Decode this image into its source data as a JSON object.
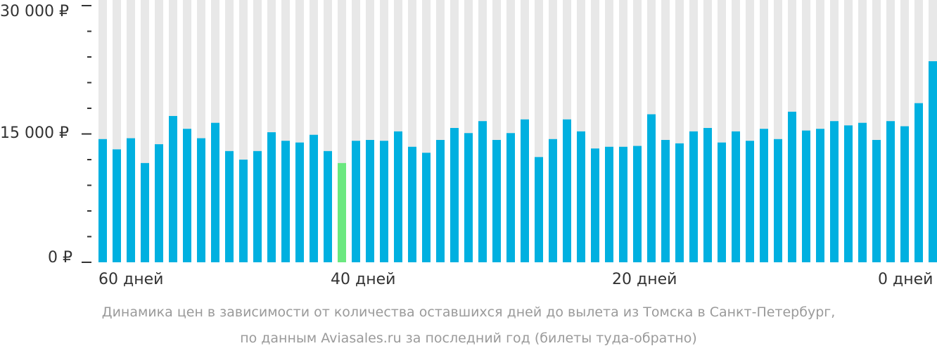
{
  "chart_data": {
    "type": "bar",
    "x_tick_labels": [
      "60 дней",
      "40 дней",
      "20 дней",
      "0 дней"
    ],
    "y_tick_labels": [
      "30 000 ₽",
      "15 000 ₽",
      "0 ₽"
    ],
    "ylim": [
      0,
      30000
    ],
    "values": [
      14400,
      13200,
      14500,
      11600,
      13800,
      17100,
      15600,
      14500,
      16300,
      13000,
      12000,
      13000,
      15200,
      14200,
      14000,
      14900,
      13000,
      11600,
      14200,
      14300,
      14200,
      15300,
      13500,
      12800,
      14300,
      15700,
      15100,
      16500,
      14300,
      15100,
      16700,
      12300,
      14400,
      16700,
      15300,
      13300,
      13500,
      13500,
      13600,
      17300,
      14300,
      13900,
      15300,
      15700,
      14000,
      15300,
      14200,
      15600,
      14400,
      17600,
      15400,
      15600,
      16500,
      16000,
      16300,
      14300,
      16500,
      15900,
      18600,
      23500
    ],
    "highlight_index": 17,
    "colors": {
      "bar": "#00b0e0",
      "highlight": "#6be87f",
      "background_column": "#e8e8e8",
      "axis": "#333333"
    }
  },
  "caption": {
    "line1": "Динамика цен в зависимости от количества оставшихся дней до вылета из Томска в Санкт-Петербург,",
    "line2": "по данным Aviasales.ru за последний год (билеты туда-обратно)"
  }
}
